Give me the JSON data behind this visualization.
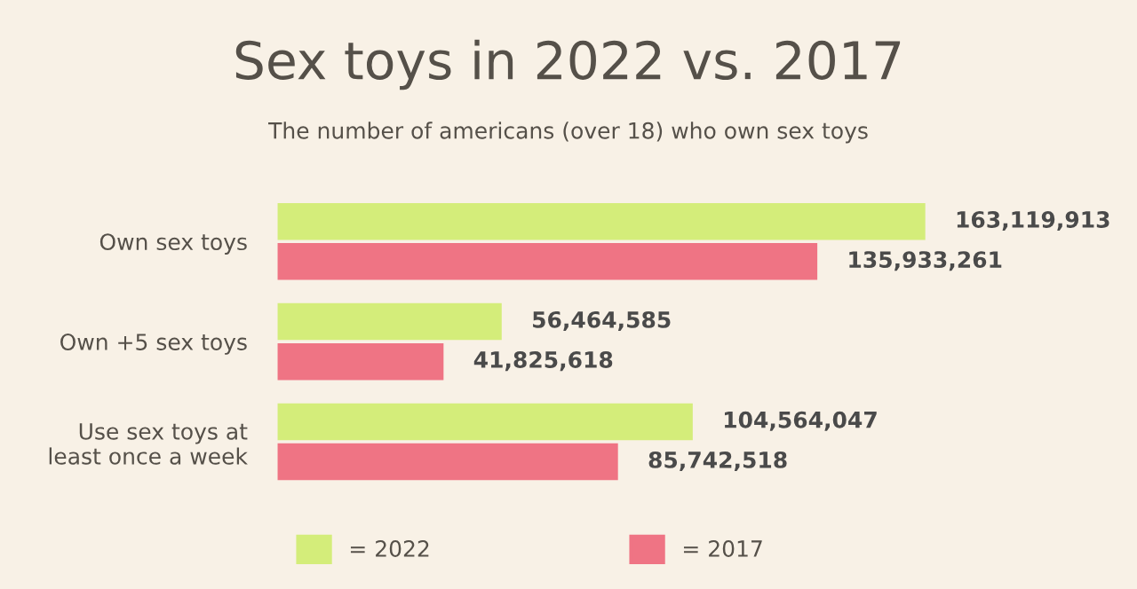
{
  "chart_data": {
    "type": "bar",
    "orientation": "horizontal",
    "title": "Sex toys in 2022 vs. 2017",
    "subtitle": "The number of americans (over 18) who own sex toys",
    "categories": [
      "Own sex toys",
      "Own +5 sex toys",
      "Use sex toys at\nleast once a week"
    ],
    "series": [
      {
        "name": "= 2022",
        "color": "#d4ed7a",
        "values": [
          163119913,
          56464585,
          104564047
        ],
        "value_labels": [
          "163,119,913",
          "56,464,585",
          "104,564,047"
        ]
      },
      {
        "name": "= 2017",
        "color": "#ef7484",
        "values": [
          135933261,
          41825618,
          85742518
        ],
        "value_labels": [
          "135,933,261",
          "41,825,618",
          "85,742,518"
        ]
      }
    ],
    "legend": "bottom"
  }
}
